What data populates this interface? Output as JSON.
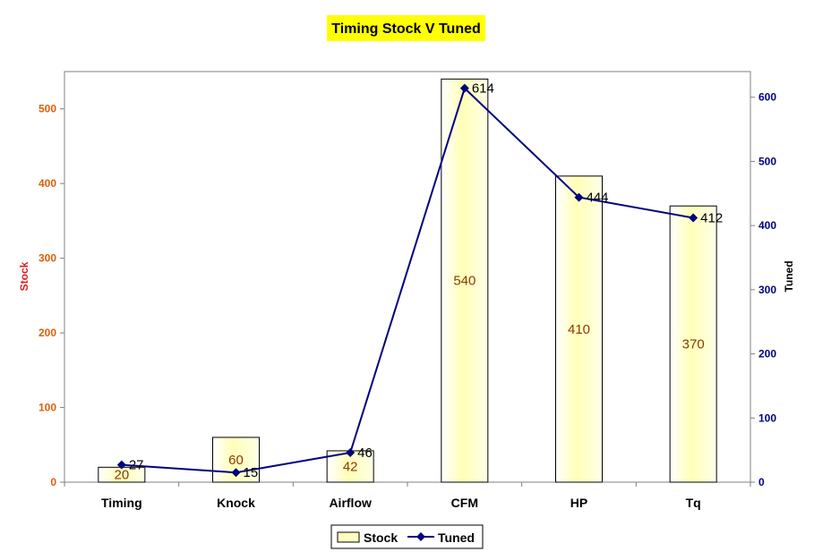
{
  "chart_data": {
    "type": "bar",
    "title": "Timing Stock V Tuned",
    "categories": [
      "Timing",
      "Knock",
      "Airflow",
      "CFM",
      "HP",
      "Tq"
    ],
    "series": [
      {
        "name": "Stock",
        "type": "bar",
        "axis": "left",
        "values": [
          20,
          60,
          42,
          540,
          410,
          370
        ]
      },
      {
        "name": "Tuned",
        "type": "line",
        "axis": "right",
        "values": [
          27,
          15,
          46,
          614,
          444,
          412
        ]
      }
    ],
    "ylabel": "Stock",
    "y2label": "Tuned",
    "ylim": [
      0,
      550
    ],
    "y2lim": [
      0,
      640
    ],
    "yticks": [
      0,
      100,
      200,
      300,
      400,
      500
    ],
    "y2ticks": [
      0,
      100,
      200,
      300,
      400,
      500,
      600
    ],
    "grid": false,
    "legend": "bottom",
    "colors": {
      "bar_fill_center": "#ffffc0",
      "bar_fill_edge": "#ffffff",
      "line": "#000080",
      "title_bg": "#ffff00",
      "left_axis": "#d9600a",
      "right_axis": "#000080"
    }
  }
}
